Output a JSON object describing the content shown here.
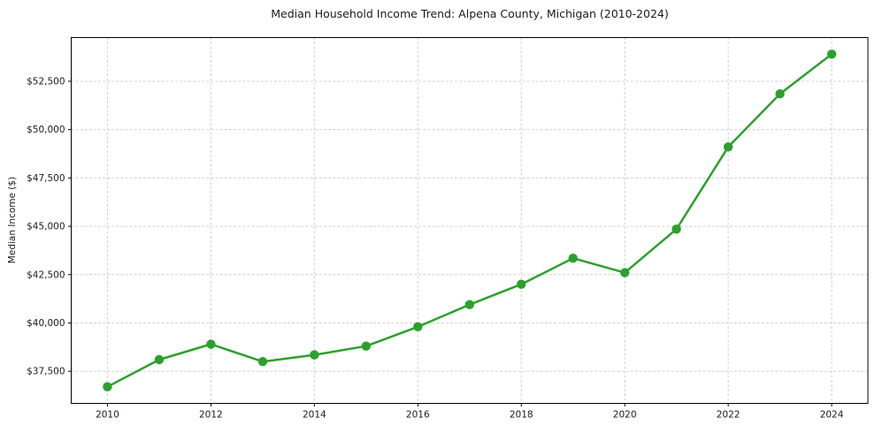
{
  "figure": {
    "background": "#ffffff"
  },
  "chart_data": {
    "type": "line",
    "title": "Median Household Income Trend: Alpena County, Michigan (2010-2024)",
    "xlabel": "",
    "ylabel": "Median Income ($)",
    "x": [
      2010,
      2011,
      2012,
      2013,
      2014,
      2015,
      2016,
      2017,
      2018,
      2019,
      2020,
      2021,
      2022,
      2023,
      2024
    ],
    "series": [
      {
        "values": [
          36700,
          38100,
          38900,
          38000,
          38350,
          38800,
          39800,
          40950,
          42000,
          43350,
          42600,
          44850,
          49100,
          51850,
          53900
        ],
        "color": "#2ca02c",
        "marker": "circle",
        "marker_radius": 5.2,
        "line_width": 2.5
      }
    ],
    "xlim": [
      2009.3,
      2024.7
    ],
    "ylim": [
      35840,
      54760
    ],
    "xticks": {
      "values": [
        2010,
        2012,
        2014,
        2016,
        2018,
        2020,
        2022,
        2024
      ],
      "labels": [
        "2010",
        "2012",
        "2014",
        "2016",
        "2018",
        "2020",
        "2022",
        "2024"
      ]
    },
    "yticks": {
      "values": [
        37500,
        40000,
        42500,
        45000,
        47500,
        50000,
        52500
      ],
      "labels": [
        "$37,500",
        "$40,000",
        "$42,500",
        "$45,000",
        "$47,500",
        "$50,000",
        "$52,500"
      ]
    },
    "grid": {
      "show": true,
      "line_style": "dashed",
      "color": "#cccccc"
    },
    "axis_color": "#000000",
    "text_color": "#1a1a1a",
    "legend": {
      "show": false
    }
  }
}
